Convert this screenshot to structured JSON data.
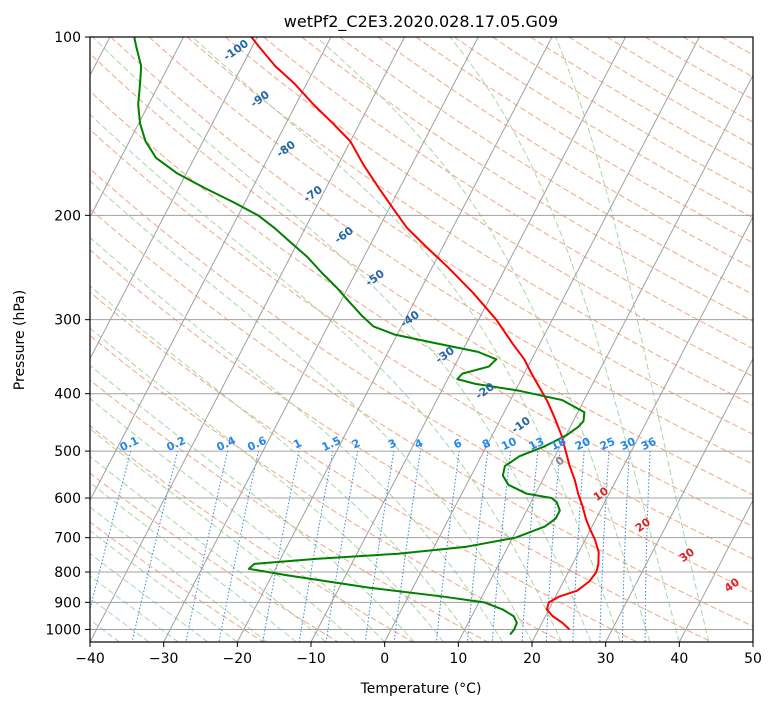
{
  "chart_data": {
    "type": "line",
    "title": "wetPf2_C2E3.2020.028.17.05.G09",
    "xlabel": "Temperature (°C)",
    "ylabel": "Pressure (hPa)",
    "xlim": [
      -40,
      50
    ],
    "ylim": [
      1050,
      100
    ],
    "y_scale": "log",
    "x_ticks": [
      -40,
      -30,
      -20,
      -10,
      0,
      10,
      20,
      30,
      40,
      50
    ],
    "y_ticks": [
      100,
      200,
      300,
      400,
      500,
      600,
      700,
      800,
      900,
      1000
    ],
    "grid": true,
    "skew_chart": "skew-T log-p diagram",
    "colors": {
      "temperature": "#ff0000",
      "dewpoint": "#008000",
      "isotherm": "#a0a0a0",
      "dry_adiabat": "#f4a582",
      "moist_adiabat": "#a6d8a6",
      "mixing_ratio": "#3388dd",
      "dry_adiabat_label": "#2266aa",
      "mixing_ratio_label": "#2288ee",
      "isotherm_label": "#dd2222"
    },
    "series": [
      {
        "name": "Temperature",
        "points": [
          [
            24.2,
            1000
          ],
          [
            22.8,
            975
          ],
          [
            21.0,
            950
          ],
          [
            19.7,
            925
          ],
          [
            19.5,
            900
          ],
          [
            20.5,
            880
          ],
          [
            22.5,
            860
          ],
          [
            23.5,
            830
          ],
          [
            23.8,
            800
          ],
          [
            23.5,
            775
          ],
          [
            22.7,
            740
          ],
          [
            21.3,
            705
          ],
          [
            19.8,
            675
          ],
          [
            18.6,
            650
          ],
          [
            17.3,
            620
          ],
          [
            15.8,
            590
          ],
          [
            14.4,
            560
          ],
          [
            12.7,
            530
          ],
          [
            11.1,
            500
          ],
          [
            9.4,
            470
          ],
          [
            7.3,
            440
          ],
          [
            5.1,
            412
          ],
          [
            3.0,
            390
          ],
          [
            1.0,
            370
          ],
          [
            -1.0,
            350
          ],
          [
            -3.6,
            330
          ],
          [
            -7.6,
            300
          ],
          [
            -12.7,
            270
          ],
          [
            -17.8,
            245
          ],
          [
            -22.5,
            225
          ],
          [
            -26.2,
            210
          ],
          [
            -29.4,
            195
          ],
          [
            -32.8,
            180
          ],
          [
            -36.4,
            165
          ],
          [
            -40.0,
            150
          ],
          [
            -43.6,
            140
          ],
          [
            -47.6,
            130
          ],
          [
            -51.6,
            120
          ],
          [
            -55.5,
            112
          ],
          [
            -59.0,
            104
          ],
          [
            -60.8,
            100
          ]
        ]
      },
      {
        "name": "Dewpoint",
        "points": [
          [
            16.5,
            1020
          ],
          [
            16.7,
            1000
          ],
          [
            16.6,
            975
          ],
          [
            15.7,
            950
          ],
          [
            13.7,
            925
          ],
          [
            10.7,
            900
          ],
          [
            4.7,
            880
          ],
          [
            -6.0,
            850
          ],
          [
            -18.0,
            810
          ],
          [
            -23.6,
            790
          ],
          [
            -23.2,
            775
          ],
          [
            -15.2,
            760
          ],
          [
            -4.4,
            745
          ],
          [
            4.4,
            725
          ],
          [
            10.4,
            700
          ],
          [
            13.6,
            670
          ],
          [
            14.5,
            650
          ],
          [
            14.5,
            630
          ],
          [
            13.5,
            610
          ],
          [
            12.5,
            600
          ],
          [
            8.8,
            590
          ],
          [
            5.7,
            570
          ],
          [
            4.3,
            550
          ],
          [
            3.9,
            530
          ],
          [
            5.2,
            510
          ],
          [
            8.0,
            490
          ],
          [
            10.1,
            470
          ],
          [
            11.1,
            455
          ],
          [
            11.4,
            445
          ],
          [
            10.9,
            430
          ],
          [
            7.0,
            410
          ],
          [
            0.3,
            395
          ],
          [
            -5.9,
            385
          ],
          [
            -8.7,
            378
          ],
          [
            -8.4,
            370
          ],
          [
            -5.3,
            360
          ],
          [
            -4.8,
            350
          ],
          [
            -7.8,
            340
          ],
          [
            -14.6,
            328
          ],
          [
            -20.3,
            318
          ],
          [
            -23.8,
            308
          ],
          [
            -26.2,
            295
          ],
          [
            -28.8,
            280
          ],
          [
            -31.5,
            265
          ],
          [
            -34.6,
            250
          ],
          [
            -37.7,
            235
          ],
          [
            -41.0,
            222
          ],
          [
            -44.2,
            210
          ],
          [
            -47.3,
            200
          ],
          [
            -51.6,
            190
          ],
          [
            -56.4,
            180
          ],
          [
            -61.2,
            170
          ],
          [
            -65.2,
            160
          ],
          [
            -67.8,
            150
          ],
          [
            -69.8,
            140
          ],
          [
            -71.4,
            130
          ],
          [
            -72.6,
            120
          ],
          [
            -73.7,
            112
          ],
          [
            -75.7,
            104
          ],
          [
            -76.7,
            100
          ]
        ]
      }
    ],
    "dry_adiabat_labels": [
      "-100",
      "-90",
      "-80",
      "-70",
      "-60",
      "-50",
      "-40",
      "-30",
      "-20",
      "-10",
      "0",
      "10",
      "20",
      "30",
      "40"
    ],
    "mixing_ratio_labels": [
      "0.1",
      "0.2",
      "0.4",
      "0.6",
      "1",
      "1.5",
      "2",
      "3",
      "4",
      "6",
      "8",
      "10",
      "13",
      "16",
      "20",
      "25",
      "30",
      "36"
    ]
  }
}
